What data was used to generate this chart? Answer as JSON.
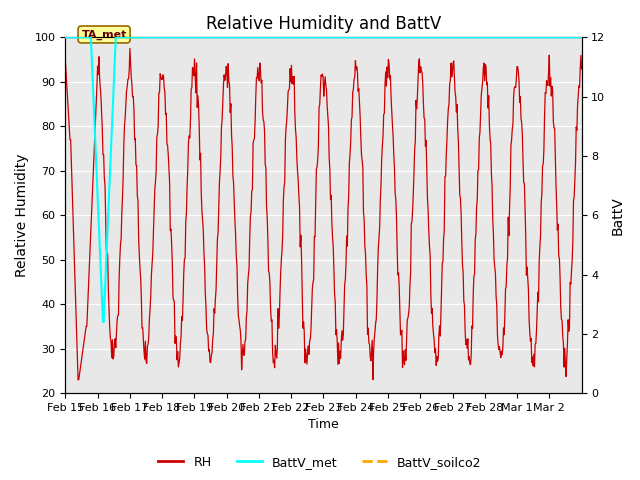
{
  "title": "Relative Humidity and BattV",
  "xlabel": "Time",
  "ylabel_left": "Relative Humidity",
  "ylabel_right": "BattV",
  "ylim_left": [
    20,
    100
  ],
  "ylim_right": [
    0,
    12
  ],
  "plot_bg_color": "#e8e8e8",
  "xtick_labels": [
    "Feb 15",
    "Feb 16",
    "Feb 17",
    "Feb 18",
    "Feb 19",
    "Feb 20",
    "Feb 21",
    "Feb 22",
    "Feb 23",
    "Feb 24",
    "Feb 25",
    "Feb 26",
    "Feb 27",
    "Feb 28",
    "Mar 1",
    "Mar 2"
  ],
  "annotation_text": "TA_met",
  "rh_color": "#cc0000",
  "battv_met_color": "cyan",
  "battv_soilco2_color": "orange",
  "legend_labels": [
    "RH",
    "BattV_met",
    "BattV_soilco2"
  ],
  "grid_color": "white",
  "yticks_left": [
    20,
    30,
    40,
    50,
    60,
    70,
    80,
    90,
    100
  ],
  "yticks_right": [
    0,
    2,
    4,
    6,
    8,
    10,
    12
  ]
}
